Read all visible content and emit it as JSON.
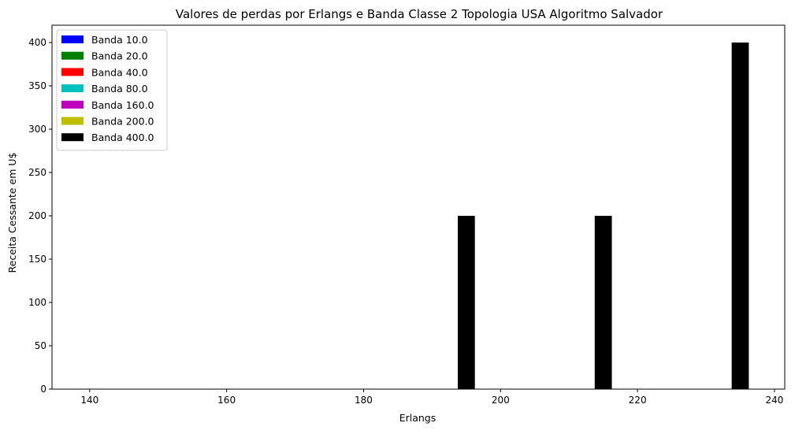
{
  "chart_data": {
    "type": "bar",
    "title": "Valores de perdas por Erlangs e Banda Classe 2  Topologia USA Algoritmo Salvador",
    "xlabel": "Erlangs",
    "ylabel": "Receita Cessante em U$",
    "xlim": [
      134.5,
      241.5
    ],
    "ylim": [
      0,
      420
    ],
    "xticks": [
      140,
      160,
      180,
      200,
      220,
      240
    ],
    "yticks": [
      0,
      50,
      100,
      150,
      200,
      250,
      300,
      350,
      400
    ],
    "legend_position": "upper left",
    "grid": false,
    "series": [
      {
        "name": "Banda 10.0",
        "color": "#0000ff",
        "x": [],
        "values": []
      },
      {
        "name": "Banda 20.0",
        "color": "#008000",
        "x": [],
        "values": []
      },
      {
        "name": "Banda 40.0",
        "color": "#ff0000",
        "x": [],
        "values": []
      },
      {
        "name": "Banda 80.0",
        "color": "#00bfbf",
        "x": [],
        "values": []
      },
      {
        "name": "Banda 160.0",
        "color": "#bf00bf",
        "x": [],
        "values": []
      },
      {
        "name": "Banda 200.0",
        "color": "#bfbf00",
        "x": [],
        "values": []
      },
      {
        "name": "Banda 400.0",
        "color": "#000000",
        "x": [
          195,
          215,
          235
        ],
        "values": [
          200,
          200,
          400
        ]
      }
    ],
    "bar_width": 2.5
  }
}
